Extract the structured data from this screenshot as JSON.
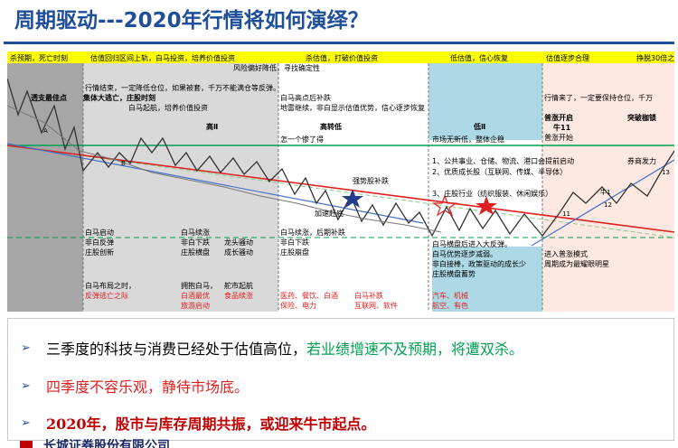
{
  "title": "周期驱动---2020年行情将如何演绎？",
  "chart": {
    "top_labels": [
      "杀预期，死亡时刻",
      "估值回归区间上轨，白马投资，培养价值投资",
      "杀估值，打破价值投资",
      "低估值，信心恢复",
      "估值逐步合理",
      "挣脱30倍之"
    ],
    "line_labels": [
      "A",
      "B",
      "11",
      "12",
      "13",
      "牛1"
    ],
    "phases": {
      "p1": [
        "透支最佳点",
        "集体大逃亡，庄股时刻",
        "白马启动",
        "非白反弹",
        "庄股创新",
        "白马布局之时，",
        "反弹逃亡之际"
      ],
      "p2": [
        "行情结束，一定降低仓位，如果被套，千万不能满仓等反弹。",
        "白马起航，培养价值投资",
        "高Ⅱ",
        "白马续涨",
        "非白下跌",
        "庄股横盘",
        "龙头骚动",
        "成长骚动",
        "拥抱白马，",
        "白酒最优",
        "旅游启动",
        "舵市起航",
        "食品续涨"
      ],
      "p3": [
        "风险偏好降低，寻找确定性",
        "白马高点后补跌",
        "地雷继续，非白显示估值优势，信心逐步恢复",
        "高转低",
        "怎一个惨了得",
        "强势股补跌",
        "加速赶底",
        "白马续涨，后期补跌",
        "非白下跌",
        "庄股崩盘",
        "医药、餐饮、白酒",
        "保险、电力",
        "白马补跌",
        "互联网、软件"
      ],
      "p4": [
        "低Ⅱ",
        "市场无新低，整体企稳",
        "1、公共事业、仓储、物流、港口会提前启动",
        "2、优质成长股（互联网、传媒、半导体）",
        "3、庄股行业（纺织服装、休闲娱乐）",
        "白马横盘后进入大反弹。",
        "白马优势逐步减弱。",
        "非白接棒，政策驱动的成长少",
        "庄股横盘蓄势",
        "汽车、机械",
        "航空、有色"
      ],
      "p5": [
        "行情来了，一定要保持仓位，千万",
        "普涨开启",
        "牛11",
        "普涨开始",
        "突破枷锁",
        "券商发力",
        "进入普涨模式",
        "周期成为最耀眼明星"
      ]
    }
  },
  "bullets": [
    {
      "mark": "➢",
      "text": "三季度的科技与消费已经处于估值高位，",
      "text_green": "若业绩增速不及预期，将遭双杀。"
    },
    {
      "mark": "➢",
      "text": "四季度不容乐观，静待市场底。"
    },
    {
      "mark": "➢",
      "text": "2020年，股市与库存周期共振，或迎来牛市起点。"
    }
  ],
  "footer": "长城证券股份有限公司",
  "colors": {
    "title": "#1f4e9a",
    "top_band": "#ffff00",
    "gray": "#c8c8c8",
    "dark_gray": "#a6a6a6",
    "light_blue": "#add8e6",
    "cyan": "#d8f0f5",
    "pink": "#fde9e1",
    "red": "#ff0000",
    "green": "#00a050",
    "blue": "#4472c4"
  }
}
